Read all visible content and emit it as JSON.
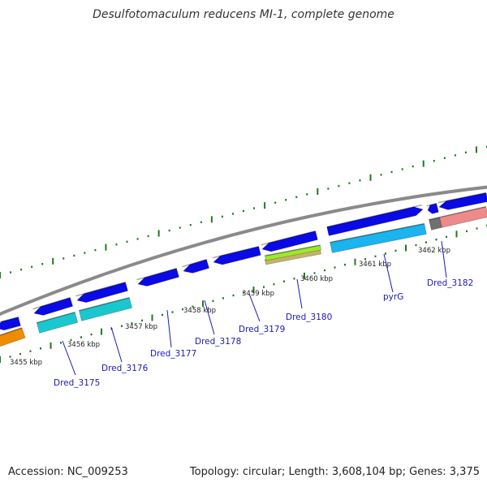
{
  "title": "Desulfotomaculum reducens MI-1, complete genome",
  "footer": {
    "accession": "Accession: NC_009253",
    "summary": "Topology: circular; Length: 3,608,104 bp; Genes: 3,375"
  },
  "colors": {
    "backbone": "#8a8a8a",
    "tick": "#1f7a1f",
    "cds": "#0a0ae6",
    "cyan": "#19c8cf",
    "skyblue": "#1ab4ee",
    "orange": "#f08c00",
    "lime": "#9ee82a",
    "olive": "#c4b36a",
    "salmon": "#ee8a8a",
    "grey": "#707070",
    "label": "#1a1ab4",
    "kbp_text": "#222222"
  },
  "kbp_labels": [
    "3455 kbp",
    "3456 kbp",
    "3457 kbp",
    "3458 kbp",
    "3459 kbp",
    "3460 kbp",
    "3461 kbp",
    "3462 kbp"
  ],
  "gene_labels": [
    "Dred_3175",
    "Dred_3176",
    "Dred_3177",
    "Dred_3178",
    "Dred_3179",
    "Dred_3180",
    "pyrG",
    "Dred_3182"
  ]
}
